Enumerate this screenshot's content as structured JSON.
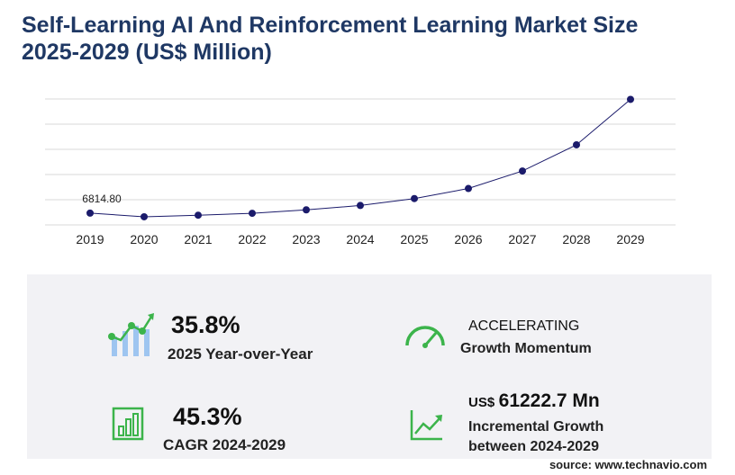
{
  "chart_data": {
    "type": "line",
    "title": "Self-Learning AI And Reinforcement Learning Market Size",
    "subtitle": "2025-2029 (US$ Million)",
    "categories": [
      "2019",
      "2020",
      "2021",
      "2022",
      "2023",
      "2024",
      "2025",
      "2026",
      "2027",
      "2028",
      "2029"
    ],
    "values": [
      6814.8,
      4700,
      5600,
      6700,
      8700,
      11192,
      15199,
      21000,
      31100,
      46200,
      72415
    ],
    "value_labels": [
      "6814.80",
      null,
      null,
      null,
      null,
      null,
      null,
      null,
      null,
      null,
      null
    ],
    "color": "#1b1b6b",
    "ylim": [
      0,
      72650
    ],
    "yticks": [
      0,
      14530,
      29060,
      43590,
      58120,
      72650
    ],
    "grid": true
  },
  "kpis": [
    {
      "value": "35.8%",
      "label": "2025 Year-over-Year"
    },
    {
      "title": "ACCELERATING",
      "label": "Growth Momentum"
    },
    {
      "value": "45.3%",
      "label": "CAGR 2024-2029"
    },
    {
      "unit": "US$",
      "value": "61222.7 Mn",
      "label": [
        "Incremental Growth",
        "between 2024-2029"
      ]
    }
  ],
  "source": "source: www.technavio.com"
}
